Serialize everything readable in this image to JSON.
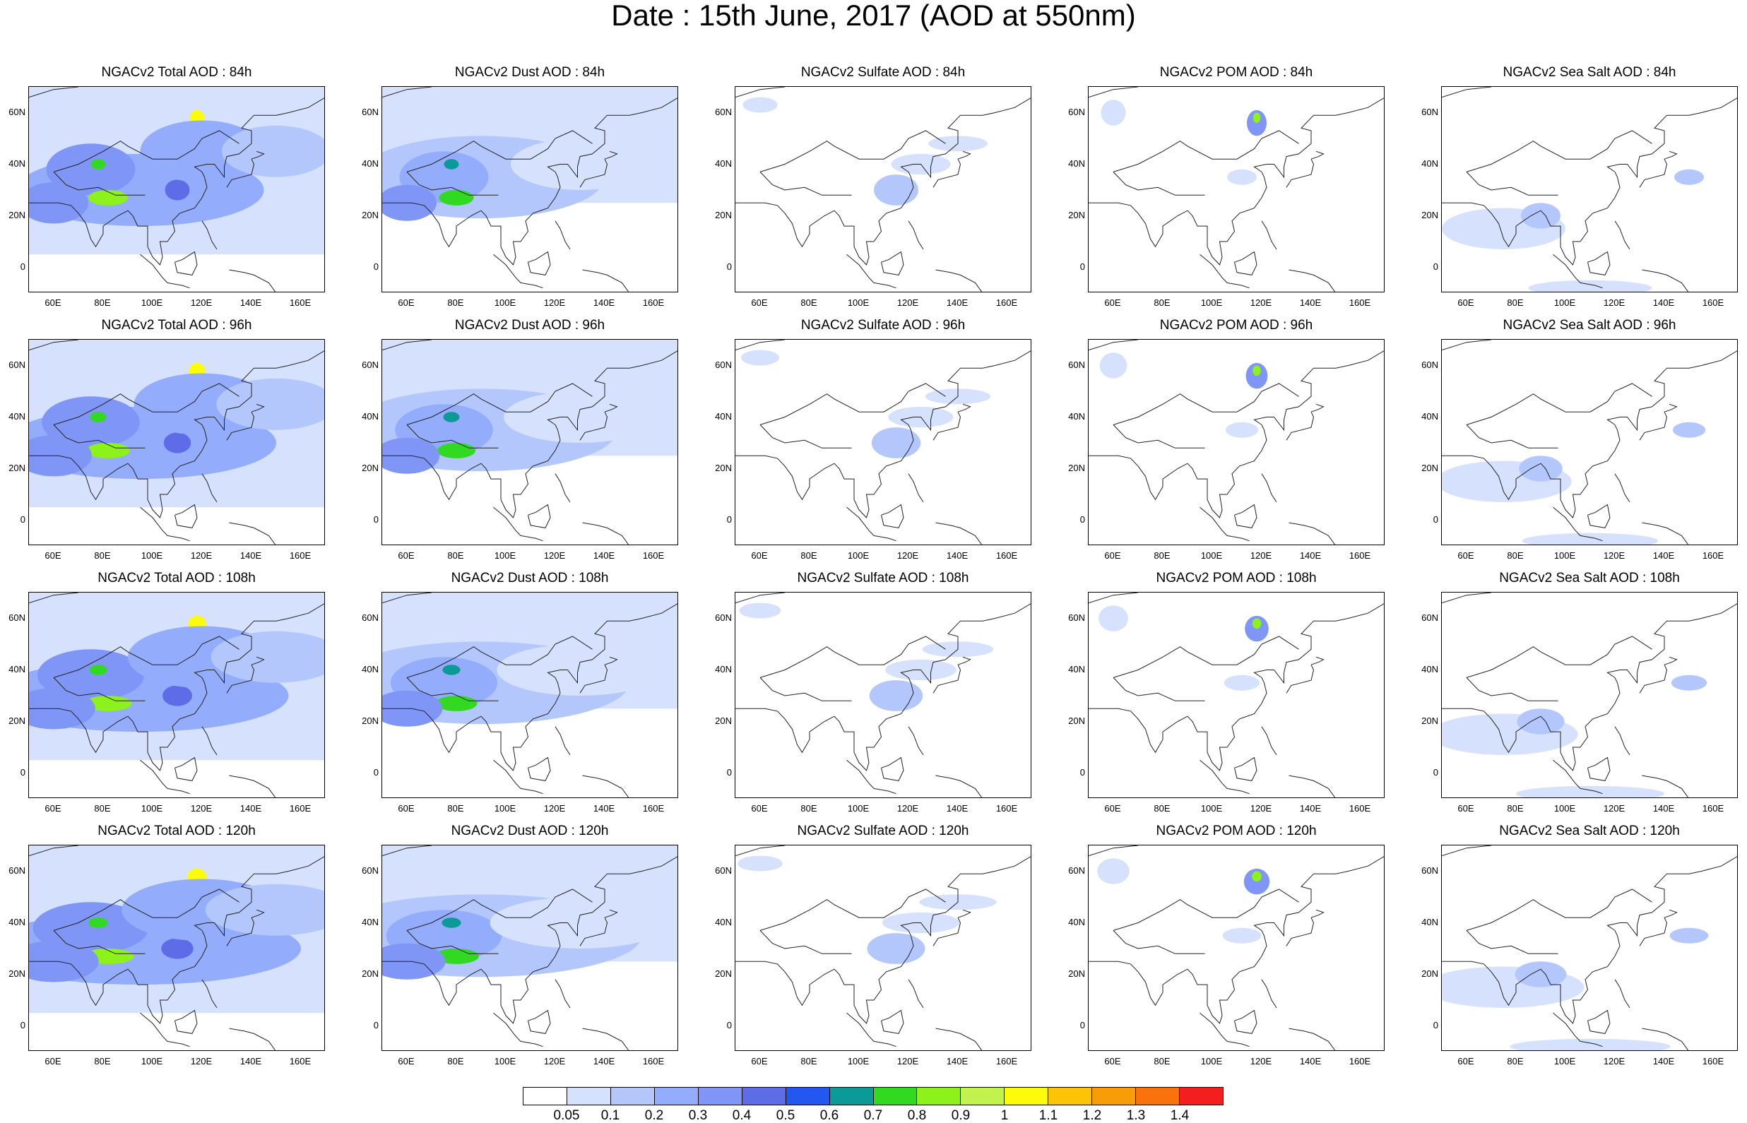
{
  "title": "Date : 15th June, 2017 (AOD at 550nm)",
  "map_axes": {
    "lon_range": [
      50,
      170
    ],
    "lat_range": [
      -10,
      70
    ],
    "xtick_labels": [
      "60E",
      "80E",
      "100E",
      "120E",
      "140E",
      "160E"
    ],
    "xtick_values": [
      60,
      80,
      100,
      120,
      140,
      160
    ],
    "ytick_labels": [
      "0",
      "20N",
      "40N",
      "60N"
    ],
    "ytick_values": [
      0,
      20,
      40,
      60
    ]
  },
  "panels": [
    {
      "title": "NGACv2 Total AOD : 84h",
      "variable": "total",
      "hour": 84
    },
    {
      "title": "NGACv2 Dust AOD : 84h",
      "variable": "dust",
      "hour": 84
    },
    {
      "title": "NGACv2 Sulfate AOD : 84h",
      "variable": "sulfate",
      "hour": 84
    },
    {
      "title": "NGACv2 POM AOD : 84h",
      "variable": "pom",
      "hour": 84
    },
    {
      "title": "NGACv2 Sea Salt AOD : 84h",
      "variable": "seasalt",
      "hour": 84
    },
    {
      "title": "NGACv2 Total AOD : 96h",
      "variable": "total",
      "hour": 96
    },
    {
      "title": "NGACv2 Dust AOD : 96h",
      "variable": "dust",
      "hour": 96
    },
    {
      "title": "NGACv2 Sulfate AOD : 96h",
      "variable": "sulfate",
      "hour": 96
    },
    {
      "title": "NGACv2 POM AOD : 96h",
      "variable": "pom",
      "hour": 96
    },
    {
      "title": "NGACv2 Sea Salt AOD : 96h",
      "variable": "seasalt",
      "hour": 96
    },
    {
      "title": "NGACv2 Total AOD : 108h",
      "variable": "total",
      "hour": 108
    },
    {
      "title": "NGACv2 Dust AOD : 108h",
      "variable": "dust",
      "hour": 108
    },
    {
      "title": "NGACv2 Sulfate AOD : 108h",
      "variable": "sulfate",
      "hour": 108
    },
    {
      "title": "NGACv2 POM AOD : 108h",
      "variable": "pom",
      "hour": 108
    },
    {
      "title": "NGACv2 Sea Salt AOD : 108h",
      "variable": "seasalt",
      "hour": 108
    },
    {
      "title": "NGACv2 Total AOD : 120h",
      "variable": "total",
      "hour": 120
    },
    {
      "title": "NGACv2 Dust AOD : 120h",
      "variable": "dust",
      "hour": 120
    },
    {
      "title": "NGACv2 Sulfate AOD : 120h",
      "variable": "sulfate",
      "hour": 120
    },
    {
      "title": "NGACv2 POM AOD : 120h",
      "variable": "pom",
      "hour": 120
    },
    {
      "title": "NGACv2 Sea Salt  AOD : 120h",
      "variable": "seasalt",
      "hour": 120
    }
  ],
  "colorbar": {
    "labels": [
      "0.05",
      "0.1",
      "0.2",
      "0.3",
      "0.4",
      "0.5",
      "0.6",
      "0.7",
      "0.8",
      "0.9",
      "1",
      "1.1",
      "1.2",
      "1.3",
      "1.4"
    ],
    "colors": [
      "#ffffff",
      "#d6e1fd",
      "#b4c7fd",
      "#93adfc",
      "#7f96f7",
      "#5e6ce8",
      "#2358f0",
      "#0d9a96",
      "#31d921",
      "#8cf21a",
      "#c2f24c",
      "#fcfc0a",
      "#fcc404",
      "#f99d06",
      "#f9730a",
      "#f51e1e"
    ]
  },
  "blobs": {
    "total": [
      {
        "lon": 95,
        "lat": 30,
        "rx": 50,
        "ry": 14,
        "level": 3
      },
      {
        "lon": 75,
        "lat": 38,
        "rx": 18,
        "ry": 10,
        "level": 4
      },
      {
        "lon": 82,
        "lat": 27,
        "rx": 8,
        "ry": 3,
        "level": 9
      },
      {
        "lon": 78,
        "lat": 40,
        "rx": 3,
        "ry": 2,
        "level": 8
      },
      {
        "lon": 118,
        "lat": 58,
        "rx": 3,
        "ry": 3,
        "level": 11
      },
      {
        "lon": 110,
        "lat": 30,
        "rx": 5,
        "ry": 4,
        "level": 5
      },
      {
        "lon": 120,
        "lat": 45,
        "rx": 25,
        "ry": 12,
        "level": 3
      },
      {
        "lon": 60,
        "lat": 25,
        "rx": 14,
        "ry": 8,
        "level": 4
      },
      {
        "lon": 150,
        "lat": 45,
        "rx": 22,
        "ry": 10,
        "level": 2
      }
    ],
    "dust": [
      {
        "lon": 90,
        "lat": 35,
        "rx": 50,
        "ry": 16,
        "level": 2
      },
      {
        "lon": 75,
        "lat": 35,
        "rx": 18,
        "ry": 10,
        "level": 3
      },
      {
        "lon": 80,
        "lat": 27,
        "rx": 7,
        "ry": 3,
        "level": 8
      },
      {
        "lon": 78,
        "lat": 40,
        "rx": 3,
        "ry": 2,
        "level": 7
      },
      {
        "lon": 60,
        "lat": 25,
        "rx": 12,
        "ry": 7,
        "level": 4
      },
      {
        "lon": 130,
        "lat": 40,
        "rx": 28,
        "ry": 10,
        "level": 1
      }
    ],
    "sulfate": [
      {
        "lon": 115,
        "lat": 30,
        "rx": 9,
        "ry": 6,
        "level": 2
      },
      {
        "lon": 125,
        "lat": 40,
        "rx": 12,
        "ry": 4,
        "level": 1
      },
      {
        "lon": 60,
        "lat": 63,
        "rx": 7,
        "ry": 3,
        "level": 1
      },
      {
        "lon": 140,
        "lat": 48,
        "rx": 12,
        "ry": 3,
        "level": 1
      }
    ],
    "pom": [
      {
        "lon": 118,
        "lat": 56,
        "rx": 4,
        "ry": 5,
        "level": 4
      },
      {
        "lon": 118,
        "lat": 58,
        "rx": 1.5,
        "ry": 2,
        "level": 9
      },
      {
        "lon": 112,
        "lat": 35,
        "rx": 6,
        "ry": 3,
        "level": 1
      },
      {
        "lon": 60,
        "lat": 60,
        "rx": 5,
        "ry": 5,
        "level": 1
      }
    ],
    "seasalt": [
      {
        "lon": 75,
        "lat": 15,
        "rx": 25,
        "ry": 8,
        "level": 1
      },
      {
        "lon": 90,
        "lat": 20,
        "rx": 8,
        "ry": 5,
        "level": 2
      },
      {
        "lon": 150,
        "lat": 35,
        "rx": 6,
        "ry": 3,
        "level": 2
      },
      {
        "lon": 110,
        "lat": -8,
        "rx": 25,
        "ry": 3,
        "level": 1
      }
    ]
  }
}
